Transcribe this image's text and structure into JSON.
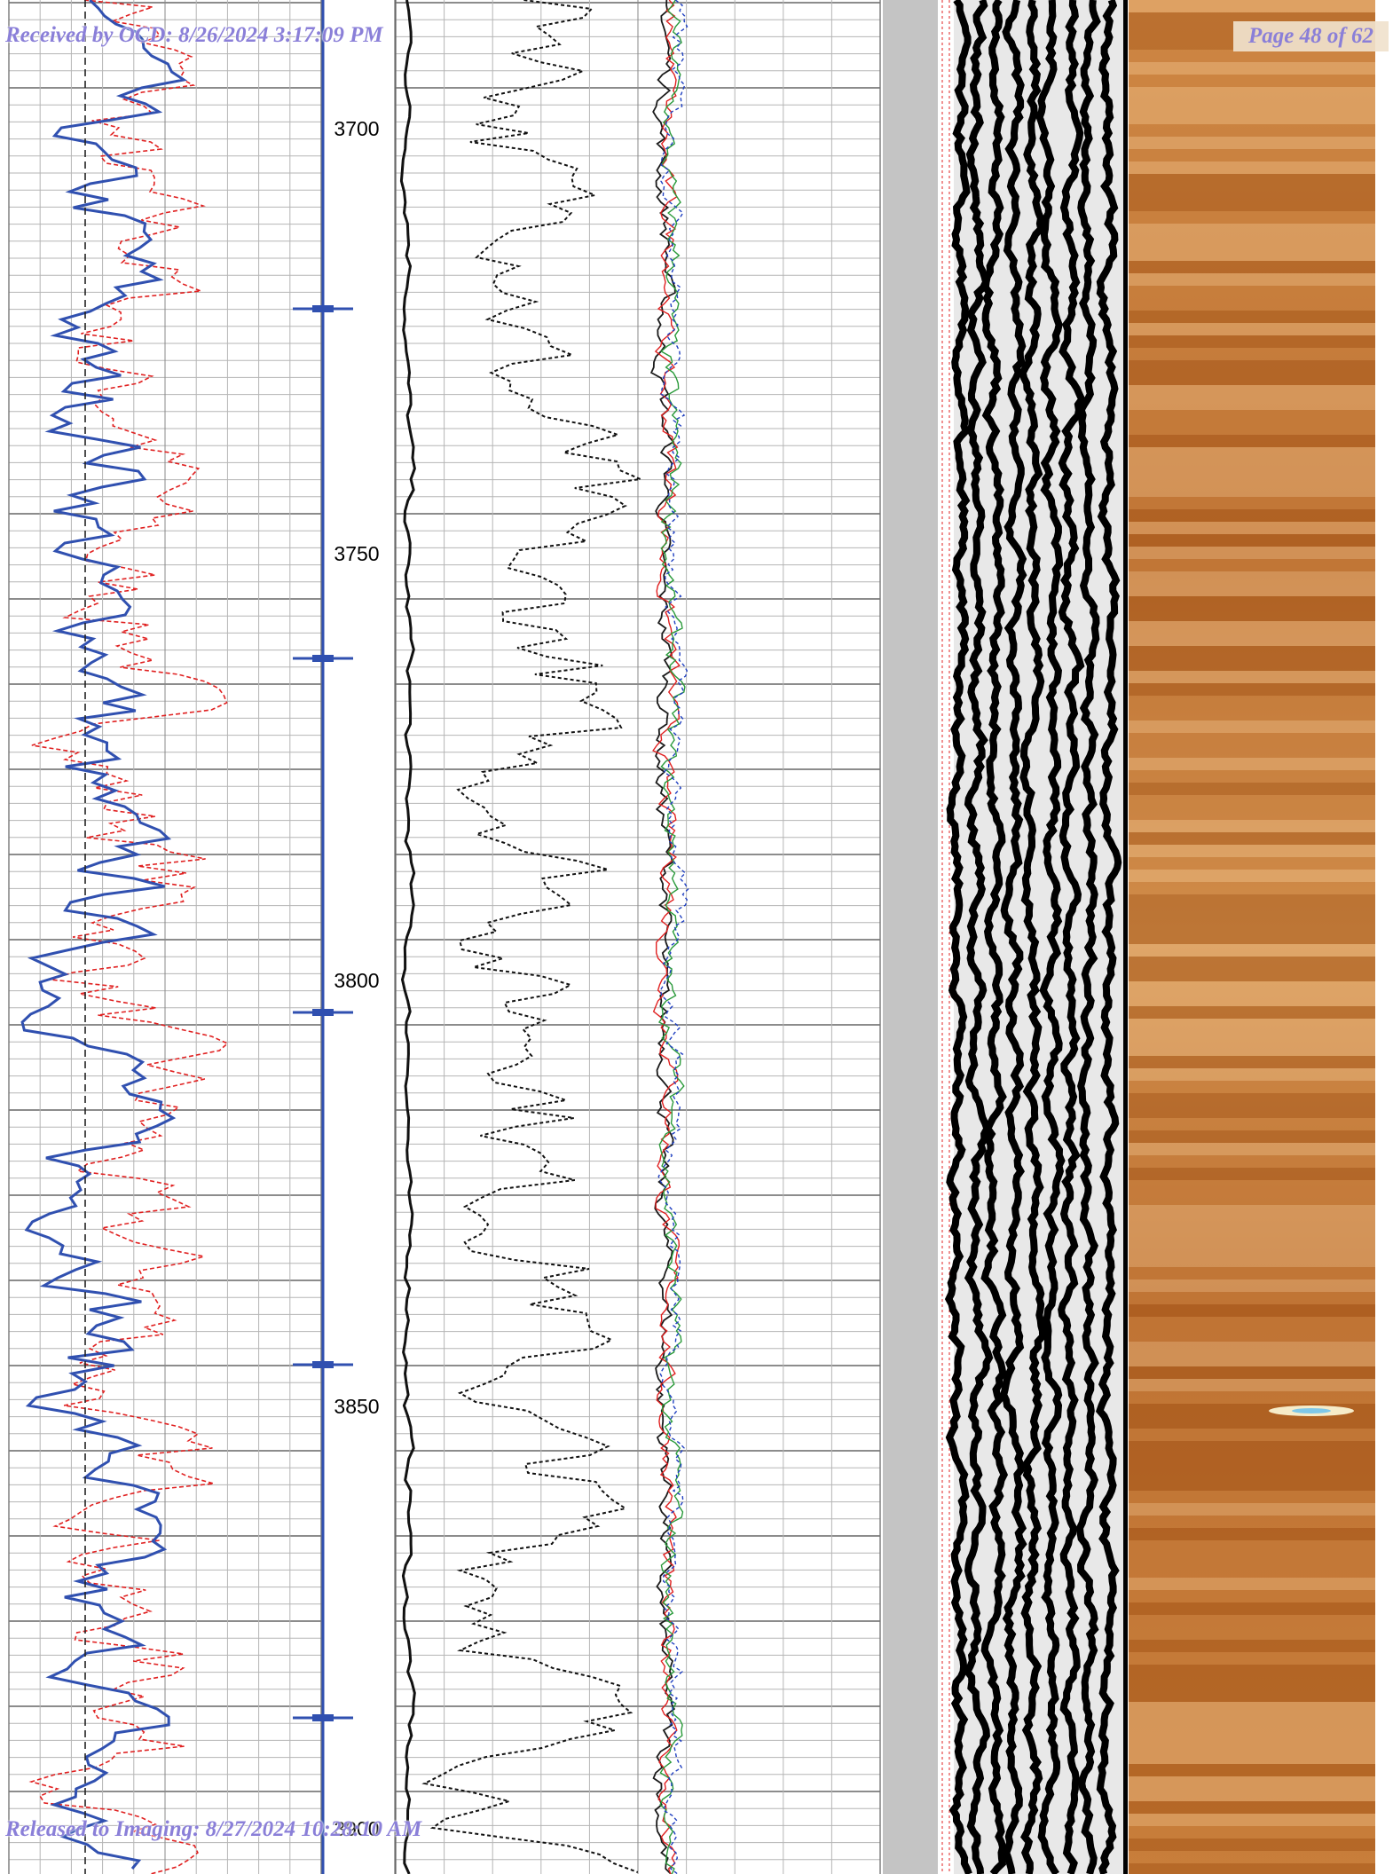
{
  "header": {
    "received_stamp": "Received by OCD: 8/26/2024 3:17:09 PM",
    "page_label": "Page 48 of 62"
  },
  "footer": {
    "released_stamp": "Released to Imaging: 8/27/2024 10:28:10 AM"
  },
  "depth_track": {
    "labels": [
      "3700",
      "3750",
      "3800",
      "3850",
      "3900"
    ]
  },
  "colors": {
    "grid": "#999999",
    "curve_blue": "#3050b0",
    "curve_red": "#e02020",
    "curve_black": "#111111",
    "image_brown": "#c2752e",
    "stamp": "#8a7fd8"
  }
}
